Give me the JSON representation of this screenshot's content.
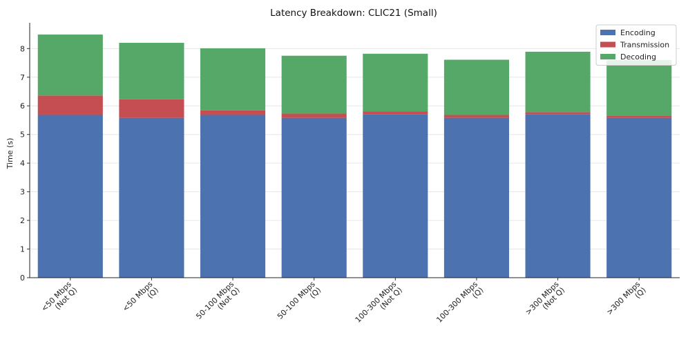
{
  "chart_data": {
    "type": "bar",
    "stacked": true,
    "title": "Latency Breakdown: CLIC21 (Small)",
    "xlabel": "",
    "ylabel": "Time (s)",
    "ylim": [
      0,
      8.9
    ],
    "yticks": [
      0,
      1,
      2,
      3,
      4,
      5,
      6,
      7,
      8
    ],
    "grid": "horizontal",
    "legend_position": "top-right",
    "categories": [
      [
        "<50 Mbps",
        "(Not Q)"
      ],
      [
        "<50 Mbps",
        "(Q)"
      ],
      [
        "50-100 Mbps",
        "(Not Q)"
      ],
      [
        "50-100 Mbps",
        "(Q)"
      ],
      [
        "100-300 Mbps",
        "(Not Q)"
      ],
      [
        "100-300 Mbps",
        "(Q)"
      ],
      [
        ">300 Mbps",
        "(Not Q)"
      ],
      [
        ">300 Mbps",
        "(Q)"
      ]
    ],
    "series": [
      {
        "name": "Encoding",
        "color": "#4c72b0",
        "values": [
          5.68,
          5.58,
          5.68,
          5.58,
          5.7,
          5.58,
          5.7,
          5.58
        ]
      },
      {
        "name": "Transmission",
        "color": "#c44e52",
        "values": [
          0.68,
          0.65,
          0.16,
          0.15,
          0.1,
          0.1,
          0.08,
          0.08
        ]
      },
      {
        "name": "Decoding",
        "color": "#55a868",
        "values": [
          2.13,
          1.97,
          2.17,
          2.02,
          2.02,
          1.93,
          2.11,
          1.94
        ]
      }
    ]
  }
}
